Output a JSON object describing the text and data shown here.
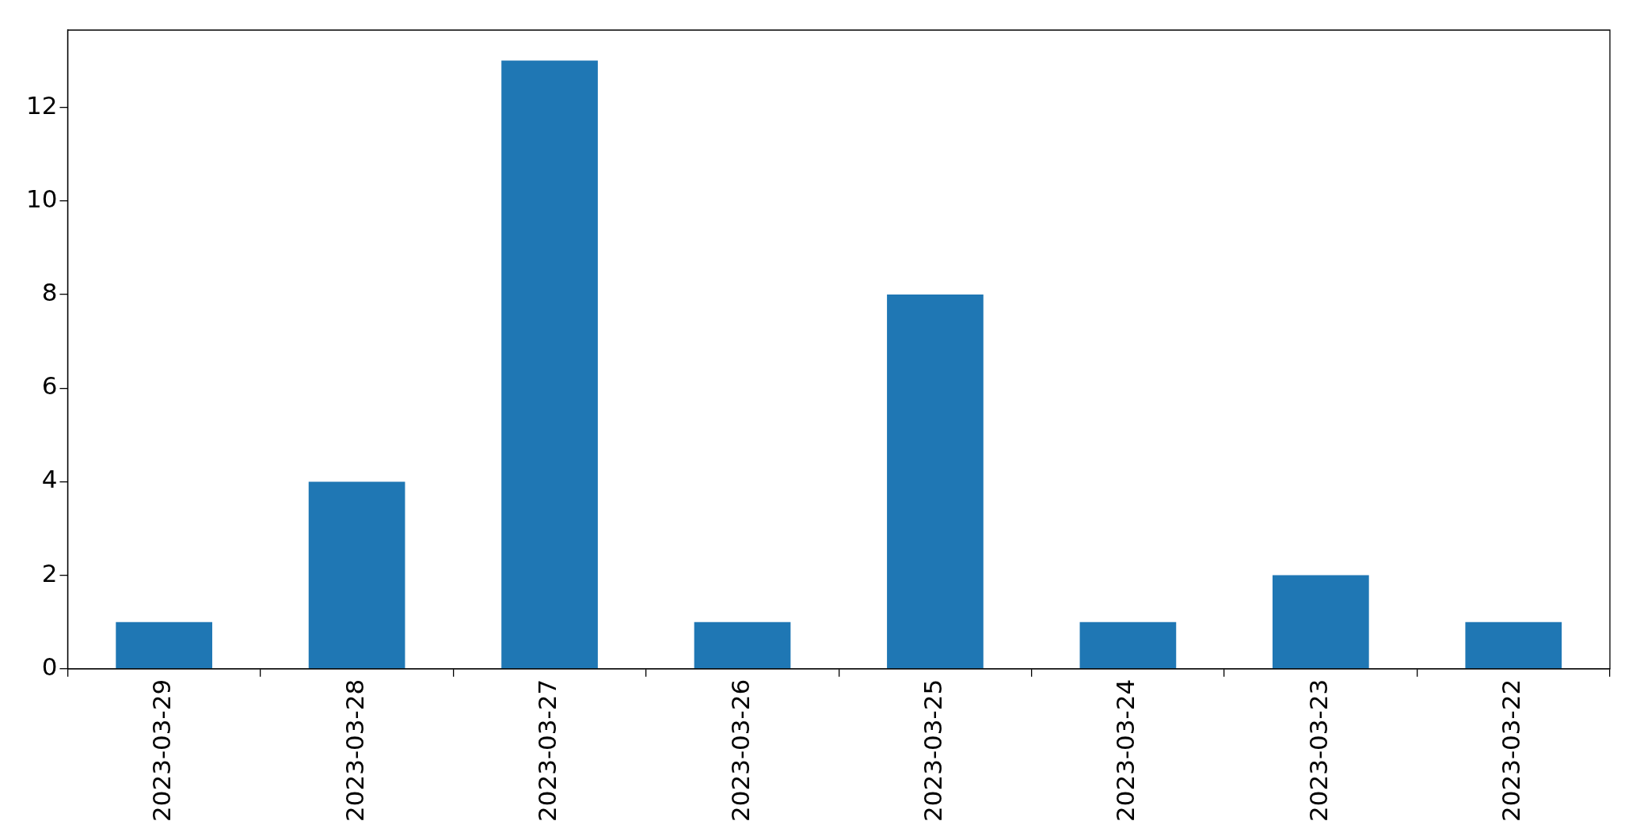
{
  "chart_data": {
    "type": "bar",
    "categories": [
      "2023-03-29",
      "2023-03-28",
      "2023-03-27",
      "2023-03-26",
      "2023-03-25",
      "2023-03-24",
      "2023-03-23",
      "2023-03-22"
    ],
    "values": [
      1,
      4,
      13,
      1,
      8,
      1,
      2,
      1
    ],
    "color": "#1f77b4",
    "ylim": [
      0,
      13.65
    ],
    "yticks": [
      0,
      2,
      4,
      6,
      8,
      10,
      12
    ],
    "legend": false
  }
}
